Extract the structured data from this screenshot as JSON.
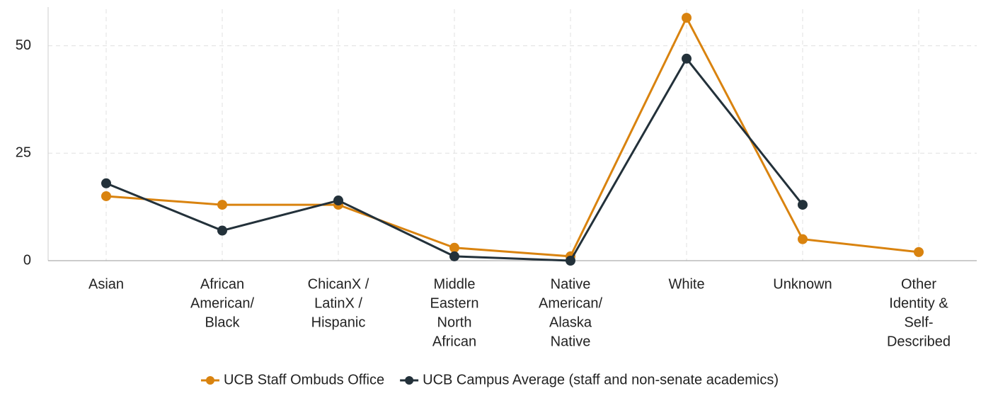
{
  "chart_data": {
    "type": "line",
    "categories": [
      [
        "Asian"
      ],
      [
        "African",
        "American/",
        "Black"
      ],
      [
        "ChicanX /",
        "LatinX /",
        "Hispanic"
      ],
      [
        "Middle",
        "Eastern",
        "North",
        "African"
      ],
      [
        "Native",
        "American/",
        "Alaska",
        "Native"
      ],
      [
        "White"
      ],
      [
        "Unknown"
      ],
      [
        "Other",
        "Identity &",
        "Self-",
        "Described"
      ]
    ],
    "series": [
      {
        "name": "UCB Staff Ombuds Office",
        "color": "#d9830f",
        "values": [
          15,
          13,
          13,
          3,
          1,
          56.5,
          5,
          2
        ]
      },
      {
        "name": "UCB Campus Average (staff and non-senate academics)",
        "color": "#23313a",
        "values": [
          18,
          7,
          14,
          1,
          0,
          47,
          13,
          null
        ]
      }
    ],
    "ylim": [
      0,
      58.5
    ],
    "yticks": [
      0,
      25,
      50
    ],
    "grid": true,
    "legend": "bottom"
  }
}
